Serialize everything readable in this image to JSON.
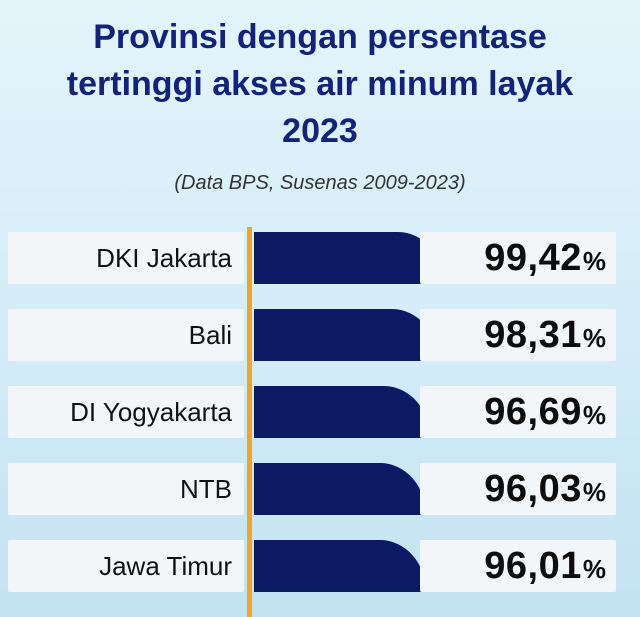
{
  "title_lines": [
    "Provinsi dengan persentase",
    "tertinggi akses air minum layak",
    "2023"
  ],
  "subtitle": "(Data BPS, Susenas 2009-2023)",
  "colors": {
    "title": "#13227a",
    "bar": "#0b1a63",
    "axis": "#f2a61e",
    "label_bg": "#f3f6f8"
  },
  "chart_data": {
    "type": "bar",
    "orientation": "horizontal",
    "title": "Provinsi dengan persentase tertinggi akses air minum layak 2023",
    "subtitle": "(Data BPS, Susenas 2009-2023)",
    "categories": [
      "DKI Jakarta",
      "Bali",
      "DI Yogyakarta",
      "NTB",
      "Jawa Timur"
    ],
    "values": [
      99.42,
      98.31,
      96.69,
      96.03,
      96.01
    ],
    "value_labels": [
      "99,42",
      "98,31",
      "96,69",
      "96,03",
      "96,01"
    ],
    "unit": "%",
    "grid": false,
    "legend": "none"
  }
}
